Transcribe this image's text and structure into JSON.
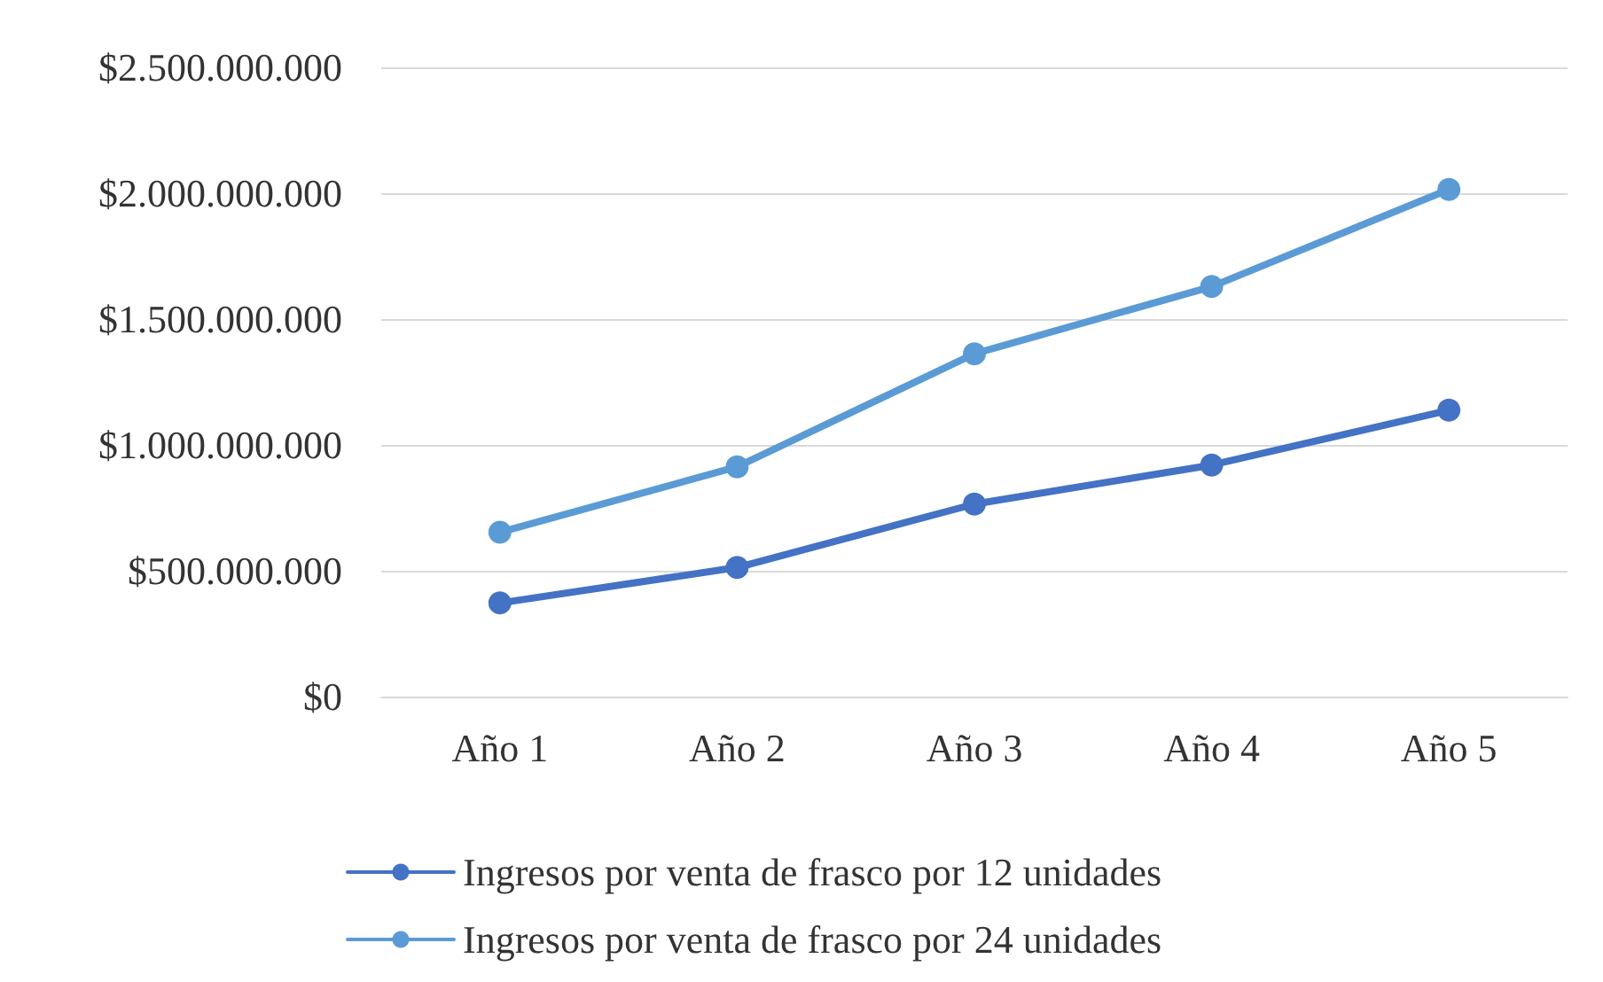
{
  "chart_data": {
    "type": "line",
    "categories": [
      "Año 1",
      "Año 2",
      "Año 3",
      "Año 4",
      "Año 5"
    ],
    "series": [
      {
        "name": "Ingresos por venta de frasco por 12 unidades",
        "color": "#4472c4",
        "values": [
          372000000,
          513000000,
          765000000,
          920000000,
          1138000000
        ]
      },
      {
        "name": "Ingresos por venta de frasco por 24 unidades",
        "color": "#5b9bd5",
        "values": [
          653000000,
          913000000,
          1362000000,
          1629000000,
          2015000000
        ]
      }
    ],
    "ylim": [
      0,
      2500000000
    ],
    "yticks": [
      {
        "value": 0,
        "label": "$0"
      },
      {
        "value": 500000000,
        "label": "$500.000.000"
      },
      {
        "value": 1000000000,
        "label": "$1.000.000.000"
      },
      {
        "value": 1500000000,
        "label": "$1.500.000.000"
      },
      {
        "value": 2000000000,
        "label": "$2.000.000.000"
      },
      {
        "value": 2500000000,
        "label": "$2.500.000.000"
      }
    ],
    "grid": "y",
    "legend": "bottom",
    "marker": "circle",
    "line_style": "solid"
  }
}
